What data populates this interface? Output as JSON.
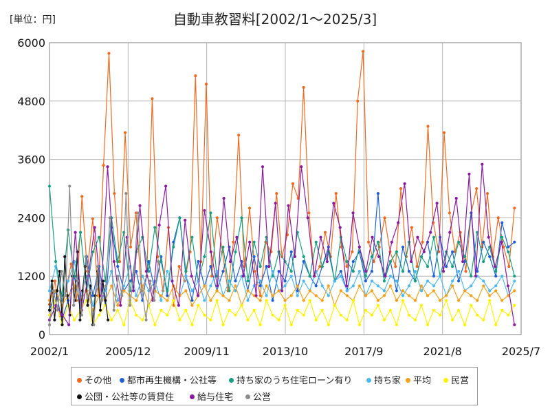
{
  "chart_data": {
    "type": "line",
    "unit_label": "[単位：円]",
    "title": "自動車教習料[2002/1～2025/3]",
    "x_ticks": [
      "2002/1",
      "2005/12",
      "2009/11",
      "2013/10",
      "2017/9",
      "2021/8",
      "2025/7"
    ],
    "x_range": [
      "2002/1",
      "2025/7"
    ],
    "y_ticks": [
      "0",
      "1200",
      "2400",
      "3600",
      "4800",
      "6000"
    ],
    "ylim": [
      0,
      6000
    ],
    "grid": true,
    "legend_position": "bottom",
    "series": [
      {
        "name": "その他",
        "color": "#ed6a1f",
        "range": [
          "2002/1",
          "2025/3"
        ],
        "values": [
          620,
          1100,
          380,
          900,
          1450,
          700,
          2840,
          1300,
          2380,
          800,
          3480,
          5780,
          2900,
          1500,
          4150,
          1800,
          2500,
          900,
          1200,
          4850,
          1600,
          900,
          2200,
          600,
          1400,
          1100,
          1700,
          5320,
          1500,
          5150,
          1200,
          2400,
          1700,
          900,
          1900,
          4100,
          1400,
          2600,
          1300,
          800,
          1900,
          1700,
          2900,
          1600,
          2050,
          3100,
          2800,
          5080,
          2500,
          1200,
          1400,
          2100,
          1600,
          2900,
          1800,
          1400,
          1700,
          4800,
          5820,
          1900,
          1500,
          1800,
          2400,
          1700,
          1400,
          3000,
          1600,
          2200,
          1400,
          1900,
          4280,
          2300,
          1700,
          4150,
          2500,
          1700,
          2100,
          1300,
          2500,
          3000,
          1800,
          2900,
          1600,
          2400,
          1800,
          1400,
          2600
        ]
      },
      {
        "name": "都市再生機構・公社等",
        "color": "#1f5fd6",
        "range": [
          "2002/1",
          "2025/3"
        ],
        "values": [
          500,
          900,
          300,
          700,
          1200,
          500,
          1600,
          800,
          1400,
          600,
          2200,
          1400,
          900,
          1100,
          1300,
          700,
          1500,
          900,
          1600,
          800,
          1900,
          2400,
          1200,
          700,
          1500,
          1000,
          1400,
          900,
          1300,
          1800,
          1100,
          1500,
          900,
          1600,
          1000,
          1400,
          700,
          1300,
          1100,
          1700,
          900,
          1500,
          1200,
          1000,
          1400,
          1800,
          1100,
          1300,
          900,
          1500,
          1700,
          1100,
          1300,
          2900,
          1200,
          1500,
          900,
          1800,
          1300,
          1100,
          1600,
          1900,
          1200,
          2000,
          1400,
          1700,
          1100,
          1500,
          2500,
          1300,
          1900,
          1600,
          1200,
          2300,
          1800,
          1900
        ]
      },
      {
        "name": "持ち家のうち住宅ローン有り",
        "color": "#16a07f",
        "range": [
          "2002/1",
          "2025/3"
        ],
        "values": [
          3050,
          1500,
          800,
          2150,
          1200,
          2100,
          900,
          1700,
          2000,
          1100,
          2400,
          1500,
          2100,
          900,
          1700,
          2000,
          1300,
          2200,
          1500,
          900,
          1800,
          2400,
          1300,
          2000,
          1100,
          1600,
          2500,
          1200,
          1800,
          900,
          1700,
          2400,
          1100,
          1900,
          1400,
          2000,
          1200,
          1700,
          1500,
          1300,
          2100,
          1600,
          1200,
          1900,
          1400,
          1700,
          1100,
          2000,
          1500,
          1300,
          1800,
          1200,
          1600,
          1900,
          1100,
          1500,
          1700,
          1300,
          1900,
          1100,
          1600,
          1400,
          2000,
          1200,
          1700,
          1400,
          1900,
          1600,
          1200,
          2100,
          1500,
          1800,
          1300,
          2000,
          1700,
          1200
        ]
      },
      {
        "name": "持ち家",
        "color": "#4db8f0",
        "range": [
          "2002/1",
          "2025/3"
        ],
        "values": [
          900,
          1400,
          700,
          1100,
          1500,
          800,
          1200,
          600,
          1100,
          900,
          1300,
          700,
          1000,
          1400,
          800,
          1200,
          900,
          1100,
          700,
          1300,
          1000,
          800,
          1200,
          900,
          1100,
          700,
          1000,
          1300,
          800,
          1100,
          900,
          1200,
          700,
          1000,
          1100,
          800,
          1300,
          900,
          1000,
          1200,
          800,
          1100,
          900,
          1300,
          1000,
          800,
          1100,
          1200,
          900,
          1000,
          1300,
          800,
          1100,
          1000,
          900,
          1200,
          1100,
          800,
          1000,
          1300,
          900,
          1100,
          1000,
          1200,
          800,
          1100,
          1300,
          900,
          1000,
          1200,
          1100,
          900,
          1000,
          1200,
          800,
          1100
        ]
      },
      {
        "name": "平均",
        "color": "#f3a11a",
        "range": [
          "2002/1",
          "2025/3"
        ],
        "values": [
          700,
          900,
          600,
          800,
          1000,
          700,
          900,
          500,
          800,
          700,
          1000,
          600,
          900,
          800,
          700,
          1000,
          600,
          900,
          800,
          700,
          1000,
          800,
          900,
          600,
          800,
          1000,
          700,
          900,
          800,
          700,
          1000,
          600,
          900,
          800,
          700,
          1000,
          800,
          900,
          700,
          800,
          1000,
          700,
          900,
          800,
          700,
          1000,
          600,
          900,
          800,
          700,
          1000,
          800,
          900,
          700,
          800,
          1000,
          700,
          900,
          800,
          700,
          1000,
          800,
          900,
          700,
          800,
          1000,
          700,
          900,
          800,
          700,
          1000,
          800,
          900,
          700,
          800,
          900
        ]
      },
      {
        "name": "民営",
        "color": "#fff200",
        "range": [
          "2002/1",
          "2025/3"
        ],
        "values": [
          400,
          700,
          200,
          600,
          300,
          500,
          700,
          200,
          400,
          600,
          300,
          500,
          200,
          700,
          400,
          300,
          600,
          200,
          500,
          400,
          700,
          300,
          500,
          200,
          600,
          400,
          300,
          700,
          200,
          500,
          400,
          600,
          300,
          500,
          200,
          700,
          400,
          300,
          600,
          200,
          500,
          400,
          700,
          300,
          500,
          200,
          600,
          400,
          300,
          700,
          200,
          500,
          400,
          600,
          300,
          500,
          200,
          700,
          400,
          300,
          600,
          200,
          500,
          400,
          700,
          300,
          500,
          200,
          600,
          400,
          300,
          700,
          200,
          500,
          400,
          600
        ]
      },
      {
        "name": "公団・公社等の賃貸住",
        "color": "#111111",
        "range": [
          "2002/1",
          "2004/12"
        ],
        "values": [
          500,
          1100,
          300,
          900,
          1300,
          200,
          1600,
          800,
          400,
          1200,
          700,
          1700,
          300,
          900,
          1400,
          600,
          1000,
          200,
          800,
          1300,
          500,
          1100,
          700,
          300
        ]
      },
      {
        "name": "給与住宅",
        "color": "#8a1a9e",
        "range": [
          "2002/1",
          "2025/3"
        ],
        "values": [
          300,
          600,
          400,
          200,
          2100,
          500,
          1200,
          2200,
          800,
          3450,
          1500,
          600,
          2000,
          900,
          2650,
          1300,
          700,
          2250,
          3050,
          1100,
          600,
          2350,
          1200,
          800,
          2550,
          1700,
          1000,
          2800,
          1500,
          2000,
          1200,
          1900,
          800,
          3450,
          1400,
          2700,
          900,
          2650,
          1600,
          3450,
          2400,
          1200,
          2000,
          1500,
          2700,
          2200,
          1000,
          2500,
          1800,
          1300,
          2000,
          1600,
          1200,
          1900,
          2300,
          3100,
          1500,
          2000,
          1700,
          2100,
          2700,
          1300,
          2100,
          2800,
          1500,
          3300,
          1200,
          3500,
          2000,
          1400,
          1900,
          1000,
          200
        ]
      },
      {
        "name": "公営",
        "color": "#8c8c8c",
        "range": [
          "2002/1",
          "2007/6"
        ],
        "values": [
          200,
          900,
          500,
          1300,
          800,
          3050,
          600,
          1100,
          400,
          1600,
          900,
          200,
          1400,
          700,
          1000,
          2400,
          500,
          1200,
          800,
          2900,
          600,
          1300,
          2500,
          900,
          300,
          1100,
          700,
          1500
        ]
      }
    ]
  }
}
